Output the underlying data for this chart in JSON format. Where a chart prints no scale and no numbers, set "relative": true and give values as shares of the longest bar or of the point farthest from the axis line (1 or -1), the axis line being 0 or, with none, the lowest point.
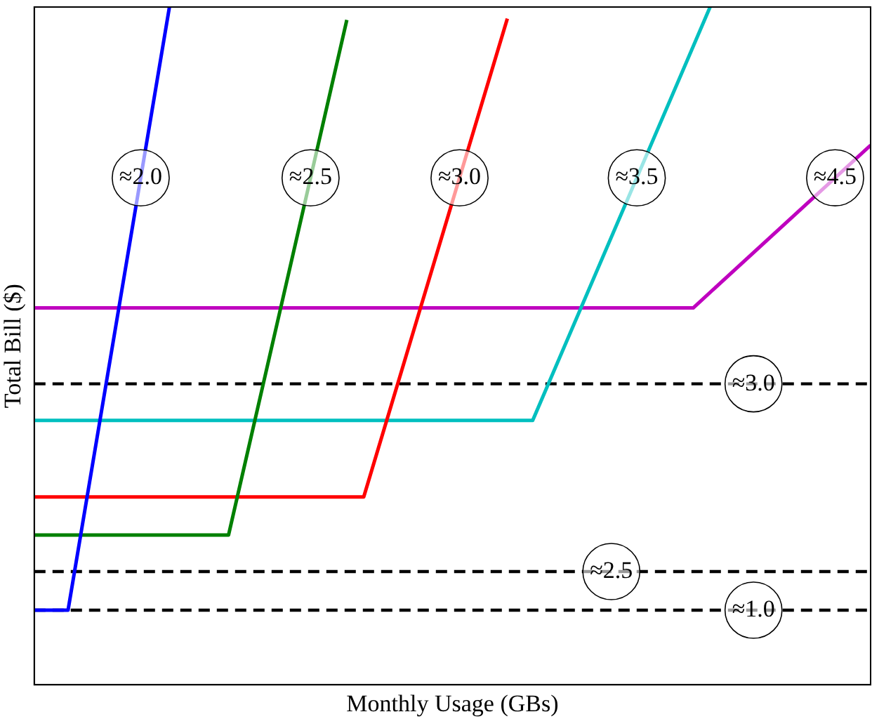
{
  "chart_data": {
    "type": "line",
    "relative": true,
    "xlabel": "Monthly Usage (GBs)",
    "ylabel": "Total Bill ($)",
    "categories": [
      null,
      null,
      null,
      null,
      null,
      null,
      null,
      null,
      null,
      null,
      null,
      null,
      null,
      null,
      null,
      null,
      null,
      null,
      null,
      null,
      null,
      null,
      null,
      null,
      null,
      null,
      null,
      null,
      null,
      null,
      null,
      null,
      null,
      null,
      null,
      null,
      null,
      null,
      null,
      null,
      null,
      null,
      null,
      null,
      null,
      null,
      null,
      null,
      null,
      null,
      null,
      null,
      null,
      null,
      null,
      null,
      null,
      null,
      null,
      null,
      null,
      null,
      null,
      null,
      null,
      null,
      null,
      null,
      null,
      null,
      null,
      null,
      null,
      null,
      null,
      null,
      null,
      null,
      null,
      null,
      null,
      null,
      null,
      null,
      null,
      null,
      null,
      null,
      null,
      null,
      null,
      null,
      null,
      null,
      null,
      null,
      null,
      null,
      null,
      null
    ],
    "series": [
      {
        "color": "#0000ff",
        "values": [
          0.11,
          null,
          null,
          null,
          0.11,
          null,
          null,
          null,
          null,
          null,
          null,
          null,
          null,
          null,
          null,
          null,
          1.0,
          null,
          null,
          null,
          null,
          null,
          null,
          null,
          null,
          null,
          null,
          null,
          null,
          null,
          null,
          null,
          null,
          null,
          null,
          null,
          null,
          null,
          null,
          null,
          null,
          null,
          null,
          null,
          null,
          null,
          null,
          null,
          null,
          null,
          null,
          null,
          null,
          null,
          null,
          null,
          null,
          null,
          null,
          null,
          null,
          null,
          null,
          null,
          null,
          null,
          null,
          null,
          null,
          null,
          null,
          null,
          null,
          null,
          null,
          null,
          null,
          null,
          null,
          null,
          null,
          null,
          null,
          null,
          null,
          null,
          null,
          null,
          null,
          null,
          null,
          null,
          null,
          null,
          null,
          null,
          null,
          null,
          null,
          null
        ]
      },
      {
        "color": "#008000",
        "values": [
          0.221,
          null,
          null,
          null,
          null,
          null,
          null,
          null,
          null,
          null,
          null,
          null,
          null,
          null,
          null,
          null,
          null,
          null,
          null,
          null,
          null,
          null,
          null,
          0.221,
          null,
          null,
          null,
          null,
          null,
          null,
          null,
          null,
          null,
          null,
          null,
          null,
          null,
          0.981,
          null,
          null,
          null,
          null,
          null,
          null,
          null,
          null,
          null,
          null,
          null,
          null,
          null,
          null,
          null,
          null,
          null,
          null,
          null,
          null,
          null,
          null,
          null,
          null,
          null,
          null,
          null,
          null,
          null,
          null,
          null,
          null,
          null,
          null,
          null,
          null,
          null,
          null,
          null,
          null,
          null,
          null,
          null,
          null,
          null,
          null,
          null,
          null,
          null,
          null,
          null,
          null,
          null,
          null,
          null,
          null,
          null,
          null,
          null,
          null,
          null,
          null
        ]
      },
      {
        "color": "#ff0000",
        "values": [
          0.277,
          null,
          null,
          null,
          null,
          null,
          null,
          null,
          null,
          null,
          null,
          null,
          null,
          null,
          null,
          null,
          null,
          null,
          null,
          null,
          null,
          null,
          null,
          null,
          null,
          null,
          null,
          null,
          null,
          null,
          null,
          null,
          null,
          null,
          null,
          null,
          null,
          null,
          null,
          0.277,
          null,
          null,
          null,
          null,
          null,
          null,
          null,
          null,
          null,
          null,
          null,
          null,
          null,
          null,
          null,
          null,
          0.983,
          null,
          null,
          null,
          null,
          null,
          null,
          null,
          null,
          null,
          null,
          null,
          null,
          null,
          null,
          null,
          null,
          null,
          null,
          null,
          null,
          null,
          null,
          null,
          null,
          null,
          null,
          null,
          null,
          null,
          null,
          null,
          null,
          null,
          null,
          null,
          null,
          null,
          null,
          null,
          null,
          null,
          null,
          null
        ]
      },
      {
        "color": "#00bfbf",
        "values": [
          0.39,
          null,
          null,
          null,
          null,
          null,
          null,
          null,
          null,
          null,
          null,
          null,
          null,
          null,
          null,
          null,
          null,
          null,
          null,
          null,
          null,
          null,
          null,
          null,
          null,
          null,
          null,
          null,
          null,
          null,
          null,
          null,
          null,
          null,
          null,
          null,
          null,
          null,
          null,
          null,
          null,
          null,
          null,
          null,
          null,
          null,
          null,
          null,
          null,
          null,
          null,
          null,
          null,
          null,
          null,
          null,
          null,
          null,
          null,
          0.39,
          null,
          null,
          null,
          null,
          null,
          null,
          null,
          null,
          null,
          null,
          null,
          null,
          null,
          null,
          null,
          null,
          null,
          null,
          null,
          null,
          1.0,
          null,
          null,
          null,
          null,
          null,
          null,
          null,
          null,
          null,
          null,
          null,
          null,
          null,
          null,
          null,
          null,
          null,
          null,
          null
        ]
      },
      {
        "color": "#bf00bf",
        "values": [
          0.556,
          null,
          null,
          null,
          null,
          null,
          null,
          null,
          null,
          null,
          null,
          null,
          null,
          null,
          null,
          null,
          null,
          null,
          null,
          null,
          null,
          null,
          null,
          null,
          null,
          null,
          null,
          null,
          null,
          null,
          null,
          null,
          null,
          null,
          null,
          null,
          null,
          null,
          null,
          null,
          null,
          null,
          null,
          null,
          null,
          null,
          null,
          null,
          null,
          null,
          null,
          null,
          null,
          null,
          null,
          null,
          null,
          null,
          null,
          null,
          null,
          null,
          null,
          null,
          null,
          null,
          null,
          null,
          null,
          null,
          null,
          null,
          null,
          null,
          null,
          null,
          null,
          null,
          0.556,
          null,
          null,
          null,
          null,
          null,
          null,
          null,
          null,
          null,
          null,
          null,
          null,
          null,
          null,
          null,
          null,
          null,
          null,
          null,
          null,
          0.796
        ]
      }
    ],
    "ref_lines": [
      {
        "axis": "y",
        "value": 0.444,
        "label": "≈3.0",
        "color": "#000000",
        "line_style": "dashed"
      },
      {
        "axis": "y",
        "value": 0.167,
        "label": "≈2.5",
        "color": "#000000",
        "line_style": "dashed"
      },
      {
        "axis": "y",
        "value": 0.11,
        "label": "≈1.0",
        "color": "#000000",
        "line_style": "dashed"
      }
    ],
    "annotations": [
      {
        "text": "≈2.0",
        "y": 0.748
      },
      {
        "text": "≈2.5",
        "y": 0.748
      },
      {
        "text": "≈3.0",
        "y": 0.748
      },
      {
        "text": "≈3.5",
        "y": 0.748
      },
      {
        "text": "≈4.5",
        "y": 0.748
      }
    ],
    "legend": false,
    "grid": false,
    "line_style": "solid",
    "marker": "none"
  }
}
